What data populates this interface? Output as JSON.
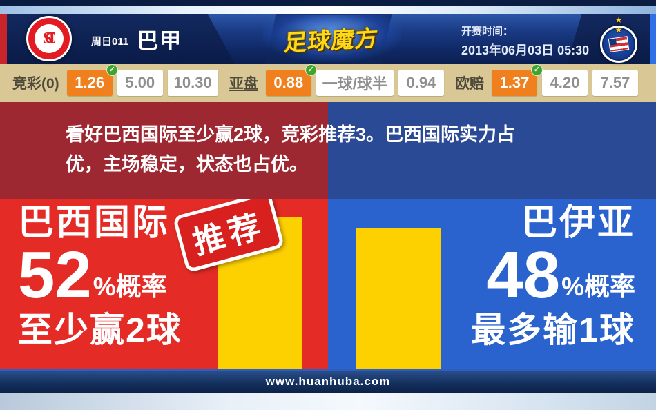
{
  "icons": {
    "check": "✓",
    "stars": "★ ★"
  },
  "header": {
    "match_code": "周日011",
    "league": "巴甲",
    "brand": "足球魔方",
    "kickoff_label": "开赛时间：",
    "kickoff_value": "2013年06月03日 05:30",
    "home_badge_monogram": "SCI"
  },
  "odds": {
    "groups": [
      {
        "label": "竞彩(0)",
        "cells": [
          {
            "value": "1.26",
            "highlight": true
          },
          {
            "value": "5.00"
          },
          {
            "value": "10.30"
          }
        ]
      },
      {
        "label": "亚盘",
        "cells": [
          {
            "value": "0.88",
            "highlight": true
          },
          {
            "value": "一球/球半"
          },
          {
            "value": "0.94"
          }
        ]
      },
      {
        "label": "欧赔",
        "cells": [
          {
            "value": "1.37",
            "highlight": true
          },
          {
            "value": "4.20"
          },
          {
            "value": "7.57"
          }
        ]
      }
    ]
  },
  "analysis": {
    "text": "看好巴西国际至少赢2球，竞彩推荐3。巴西国际实力占优，主场稳定，状态也占优。"
  },
  "main": {
    "home": {
      "name": "巴西国际",
      "percent": 52,
      "percent_suffix": "%概率",
      "outcome": "至少赢2球",
      "stamp": "推荐"
    },
    "away": {
      "name": "巴伊亚",
      "percent": 48,
      "percent_suffix": "%概率",
      "outcome": "最多输1球"
    }
  },
  "footer": {
    "url": "www.huanhuba.com"
  },
  "colors": {
    "accent_orange": "#f07f1d",
    "check_green": "#3ea42c",
    "panel_red": "#e42b26",
    "panel_blue": "#2a63cd",
    "band_red": "#9e2831",
    "band_blue": "#2b4a96",
    "bar_yellow": "#fdd000",
    "odds_bg": "#d9c795"
  }
}
